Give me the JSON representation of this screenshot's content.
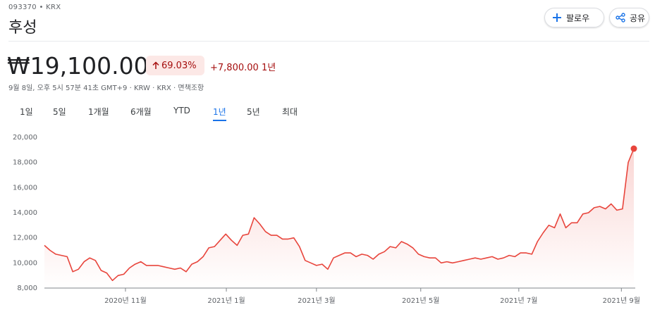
{
  "header": {
    "ticker": "093370 • KRX",
    "name": "후성",
    "follow": "팔로우",
    "share": "공유"
  },
  "quote": {
    "price": "₩19,100.00",
    "change_percent": "69.03%",
    "change": "+7,800.00",
    "period": "1년",
    "timestamp": "9월 8일, 오후 5시 57분 41초 GMT+9 · KRW · KRX · 면책조항"
  },
  "tabs": {
    "items": [
      "1일",
      "5일",
      "1개월",
      "6개월",
      "YTD",
      "1년",
      "5년",
      "최대"
    ],
    "active": 5
  },
  "chart_data": {
    "type": "line",
    "color": "#e8453c",
    "grid": false,
    "values": [
      11400,
      11000,
      10700,
      10600,
      10500,
      9300,
      9500,
      10100,
      10400,
      10200,
      9400,
      9200,
      8600,
      9000,
      9100,
      9600,
      9900,
      10100,
      9800,
      9800,
      9800,
      9700,
      9600,
      9500,
      9600,
      9300,
      9900,
      10100,
      10500,
      11200,
      11300,
      11800,
      12300,
      11800,
      11400,
      12200,
      12300,
      13600,
      13100,
      12500,
      12200,
      12200,
      11900,
      11900,
      12000,
      11300,
      10200,
      10000,
      9800,
      9900,
      9500,
      10400,
      10600,
      10800,
      10800,
      10500,
      10700,
      10600,
      10300,
      10700,
      10900,
      11300,
      11200,
      11700,
      11500,
      11200,
      10700,
      10500,
      10400,
      10400,
      10000,
      10100,
      10000,
      10100,
      10200,
      10300,
      10400,
      10300,
      10400,
      10500,
      10300,
      10400,
      10600,
      10500,
      10800,
      10800,
      10700,
      11700,
      12400,
      13000,
      12800,
      13900,
      12800,
      13200,
      13200,
      13900,
      14000,
      14400,
      14500,
      14300,
      14700,
      14200,
      14300,
      18000,
      19100
    ],
    "xlim": [
      0,
      104
    ],
    "xticks": [
      {
        "value": 14.3,
        "label": "2020년 11월"
      },
      {
        "value": 32.1,
        "label": "2021년 1월"
      },
      {
        "value": 48.0,
        "label": "2021년 3월"
      },
      {
        "value": 66.4,
        "label": "2021년 5월"
      },
      {
        "value": 83.7,
        "label": "2021년 7월"
      },
      {
        "value": 101.8,
        "label": "2021년 9월"
      }
    ],
    "ylim": [
      8000,
      20000
    ],
    "yticks": [
      {
        "value": 8000,
        "label": "8,000"
      },
      {
        "value": 10000,
        "label": "10,000"
      },
      {
        "value": 12000,
        "label": "12,000"
      },
      {
        "value": 14000,
        "label": "14,000"
      },
      {
        "value": 16000,
        "label": "16,000"
      },
      {
        "value": 18000,
        "label": "18,000"
      },
      {
        "value": 20000,
        "label": "20,000"
      }
    ]
  }
}
